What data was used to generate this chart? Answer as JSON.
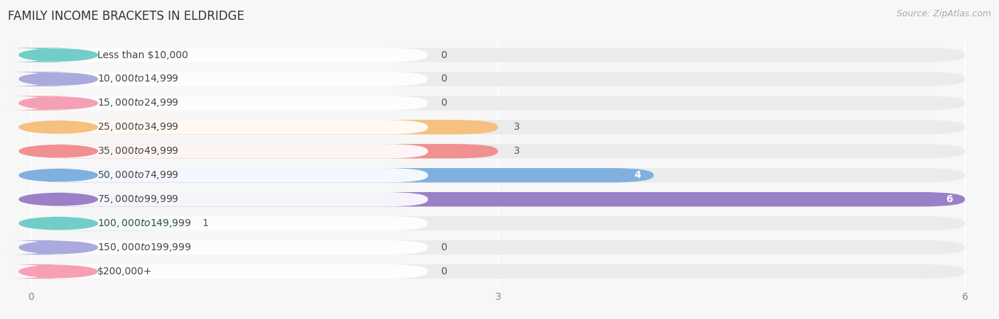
{
  "title": "FAMILY INCOME BRACKETS IN ELDRIDGE",
  "source": "Source: ZipAtlas.com",
  "categories": [
    "Less than $10,000",
    "$10,000 to $14,999",
    "$15,000 to $24,999",
    "$25,000 to $34,999",
    "$35,000 to $49,999",
    "$50,000 to $74,999",
    "$75,000 to $99,999",
    "$100,000 to $149,999",
    "$150,000 to $199,999",
    "$200,000+"
  ],
  "values": [
    0,
    0,
    0,
    3,
    3,
    4,
    6,
    1,
    0,
    0
  ],
  "bar_colors": [
    "#72cdc8",
    "#aaaade",
    "#f5a0b5",
    "#f5c080",
    "#f09090",
    "#80b0e0",
    "#9b80c8",
    "#72cdc8",
    "#aaaade",
    "#f5a0b5"
  ],
  "xlim_max": 6,
  "xticks": [
    0,
    3,
    6
  ],
  "background_color": "#f7f7f7",
  "row_bg_color": "#ebebeb",
  "title_fontsize": 12,
  "source_fontsize": 9,
  "label_fontsize": 10,
  "value_fontsize": 10,
  "figwidth": 14.06,
  "figheight": 4.5,
  "dpi": 100
}
